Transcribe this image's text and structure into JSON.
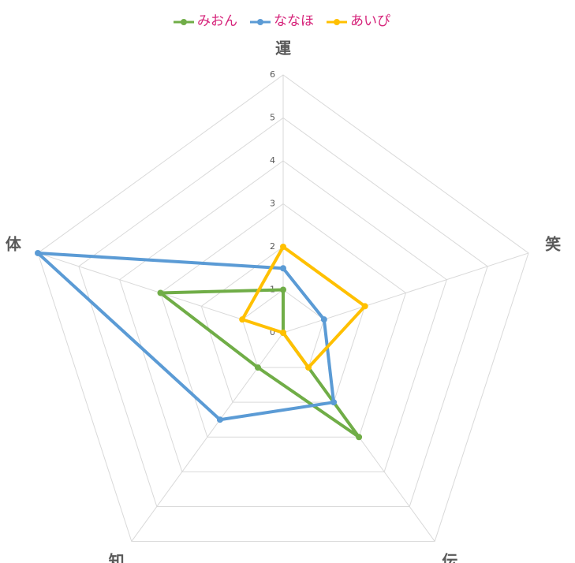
{
  "chart_data": {
    "type": "radar",
    "categories": [
      "運",
      "笑",
      "伝",
      "知",
      "体"
    ],
    "series": [
      {
        "name": "みおん",
        "color": "#70ad47",
        "values": [
          1,
          0,
          3,
          1,
          3
        ]
      },
      {
        "name": "ななほ",
        "color": "#5b9bd5",
        "values": [
          1.5,
          1,
          2,
          2.5,
          6
        ]
      },
      {
        "name": "あいぴ",
        "color": "#ffc000",
        "values": [
          2,
          2,
          1,
          0,
          1
        ]
      }
    ],
    "rlim": [
      0,
      6
    ],
    "rticks": [
      0,
      1,
      2,
      3,
      4,
      5,
      6
    ],
    "grid": true,
    "legend": "top"
  }
}
